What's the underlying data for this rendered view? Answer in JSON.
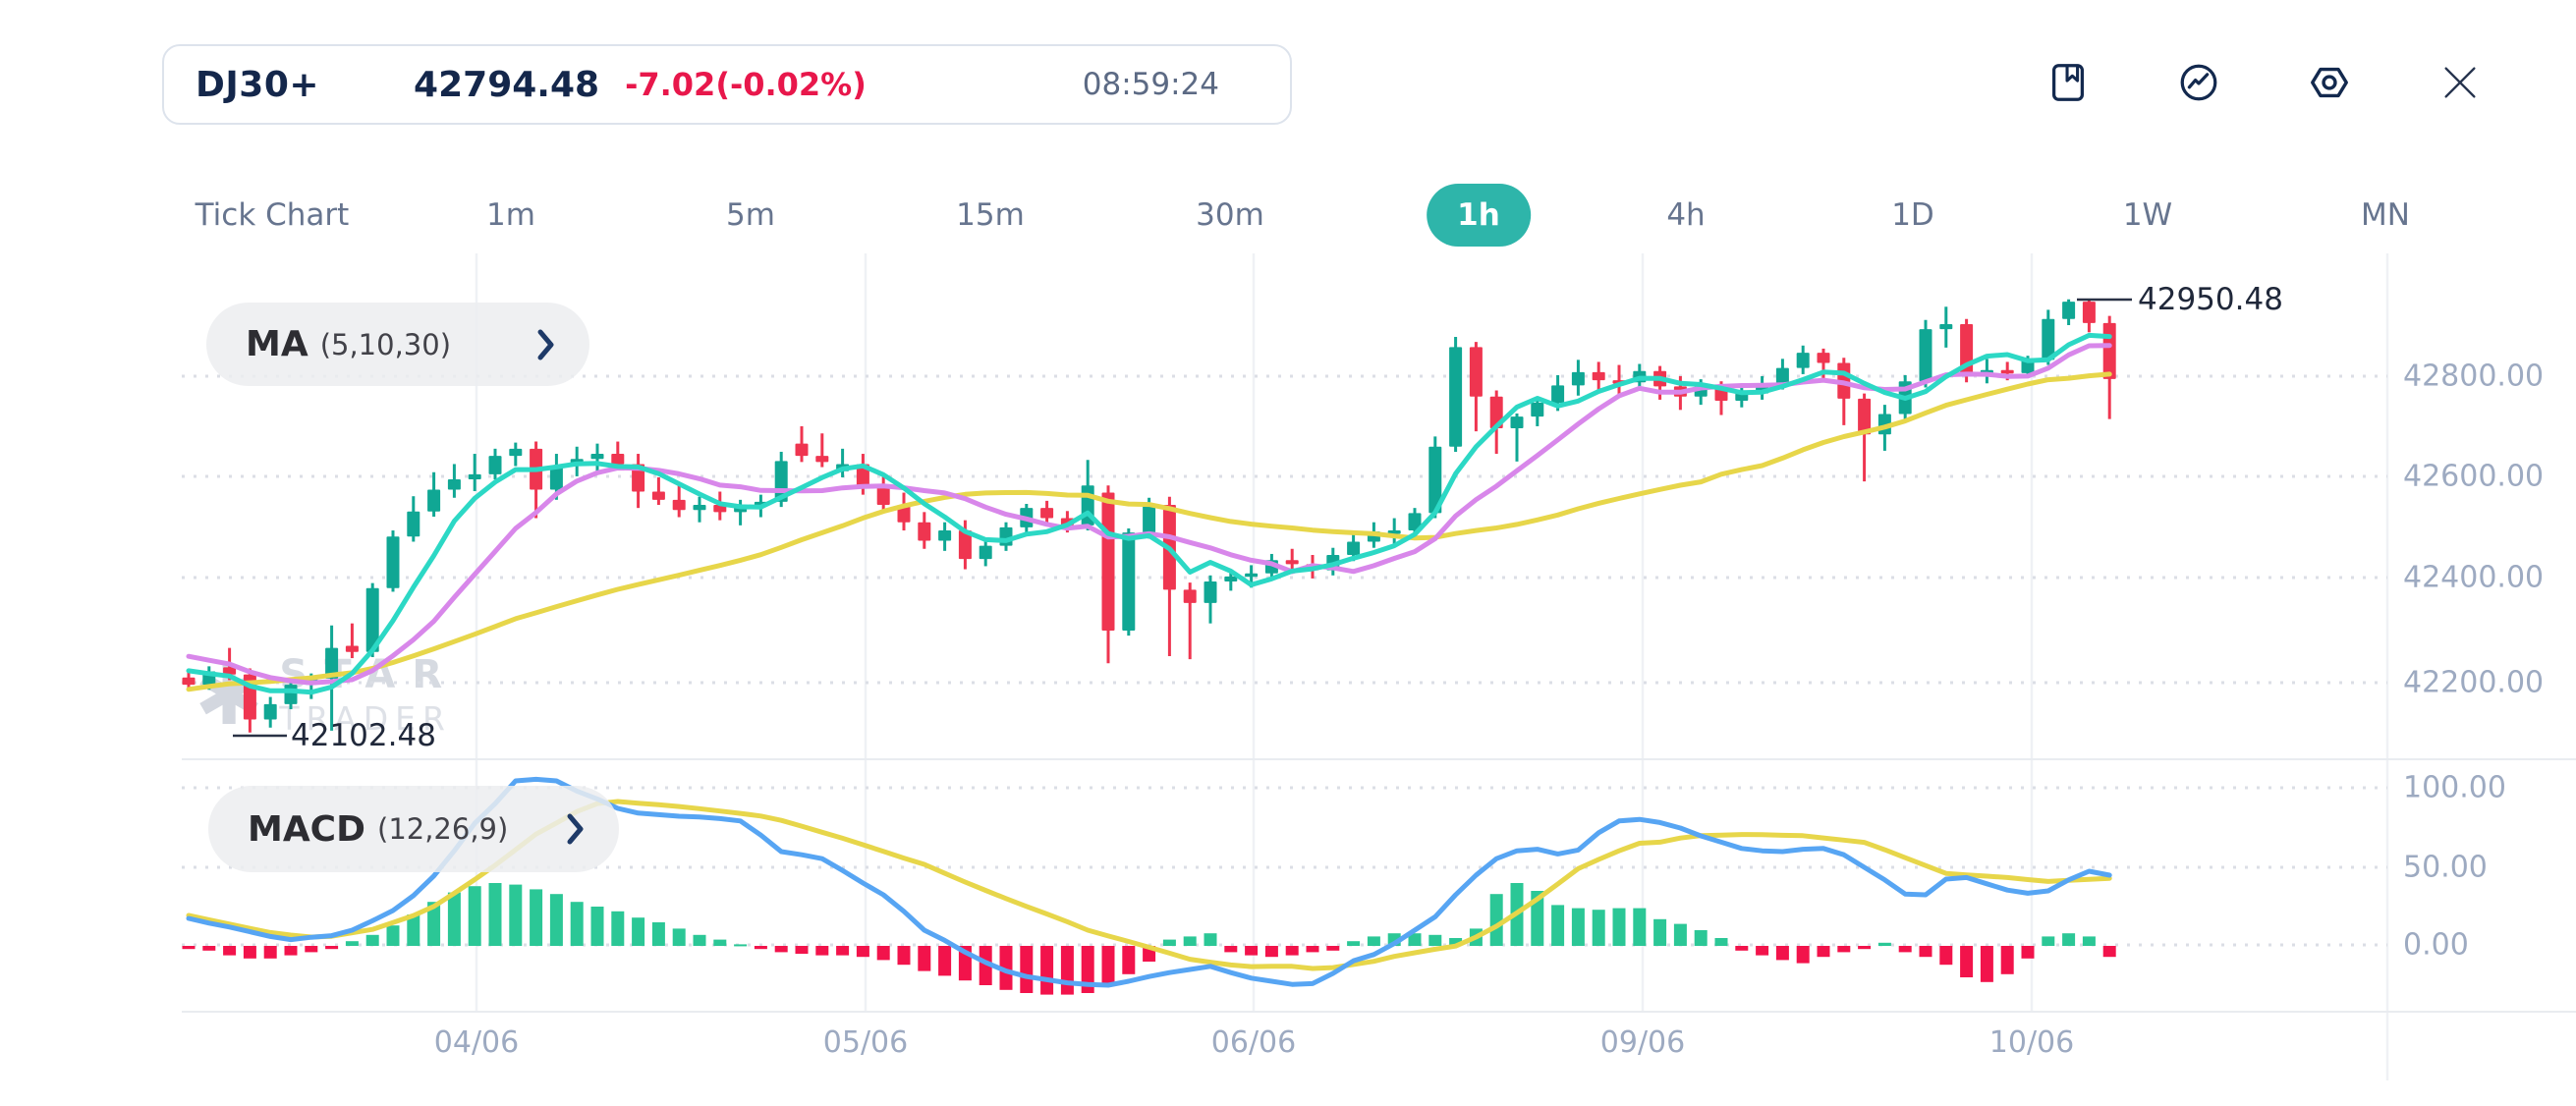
{
  "header": {
    "symbol": "DJ30+",
    "price": "42794.48",
    "change": "-7.02(-0.02%)",
    "time": "08:59:24"
  },
  "toolbar": {
    "icons": [
      "bookmark-icon",
      "chart-line-icon",
      "settings-icon",
      "close-icon"
    ]
  },
  "tabs": [
    {
      "label": "Tick Chart",
      "active": false
    },
    {
      "label": "1m",
      "active": false
    },
    {
      "label": "5m",
      "active": false
    },
    {
      "label": "15m",
      "active": false
    },
    {
      "label": "30m",
      "active": false
    },
    {
      "label": "1h",
      "active": true
    },
    {
      "label": "4h",
      "active": false
    },
    {
      "label": "1D",
      "active": false
    },
    {
      "label": "1W",
      "active": false
    },
    {
      "label": "MN",
      "active": false
    }
  ],
  "indicators": {
    "ma_label": "MA",
    "ma_params": "(5,10,30)",
    "macd_label": "MACD",
    "macd_params": "(12,26,9)"
  },
  "watermark": {
    "star": "✱",
    "line1": "STAR",
    "line2": "TRADER"
  },
  "chart_data": {
    "type": "candlestick",
    "timeframe": "1h",
    "title": "DJ30+ 1h candlestick chart with MA(5,10,30) and MACD(12,26,9)",
    "price_axis": {
      "tick_labels": [
        "42800.00",
        "42600.00",
        "42400.00",
        "42200.00"
      ],
      "tick_values": [
        42800,
        42600,
        42400,
        42200
      ]
    },
    "macd_axis": {
      "tick_labels": [
        "100.00",
        "50.00",
        "0.00"
      ],
      "tick_values": [
        100,
        50,
        0
      ]
    },
    "x_labels": [
      "04/06",
      "05/06",
      "06/06",
      "09/06",
      "10/06"
    ],
    "high_label": "42950.48",
    "low_label": "42102.48",
    "ma_periods": [
      5,
      10,
      30
    ],
    "pre_closes": [
      42040,
      42050,
      42060,
      42070,
      42080,
      42090,
      42100,
      42110,
      42120,
      42130,
      42140,
      42150,
      42160,
      42170,
      42180,
      42190,
      42200,
      42230,
      42260,
      42290,
      42310,
      42300,
      42290,
      42280,
      42270,
      42260,
      42250,
      42240,
      42225,
      42205
    ],
    "candles": [
      [
        42210,
        42225,
        42185,
        42196
      ],
      [
        42196,
        42232,
        42186,
        42222
      ],
      [
        42230,
        42268,
        42205,
        42216
      ],
      [
        42216,
        42228,
        42102.48,
        42128
      ],
      [
        42128,
        42172,
        42112,
        42158
      ],
      [
        42158,
        42205,
        42148,
        42196
      ],
      [
        42196,
        42218,
        42168,
        42208
      ],
      [
        42208,
        42312,
        42106,
        42268
      ],
      [
        42272,
        42316,
        42248,
        42260
      ],
      [
        42260,
        42395,
        42250,
        42385
      ],
      [
        42385,
        42498,
        42378,
        42486
      ],
      [
        42486,
        42565,
        42476,
        42535
      ],
      [
        42535,
        42612,
        42525,
        42578
      ],
      [
        42578,
        42628,
        42562,
        42598
      ],
      [
        42598,
        42648,
        42575,
        42608
      ],
      [
        42608,
        42658,
        42598,
        42644
      ],
      [
        42644,
        42670,
        42624,
        42658
      ],
      [
        42658,
        42672,
        42522,
        42578
      ],
      [
        42578,
        42648,
        42558,
        42624
      ],
      [
        42624,
        42662,
        42604,
        42638
      ],
      [
        42638,
        42668,
        42614,
        42648
      ],
      [
        42648,
        42672,
        42618,
        42628
      ],
      [
        42628,
        42648,
        42542,
        42574
      ],
      [
        42574,
        42602,
        42548,
        42558
      ],
      [
        42558,
        42588,
        42524,
        42538
      ],
      [
        42538,
        42564,
        42514,
        42548
      ],
      [
        42548,
        42574,
        42518,
        42534
      ],
      [
        42534,
        42558,
        42508,
        42544
      ],
      [
        42544,
        42568,
        42524,
        42554
      ],
      [
        42554,
        42652,
        42544,
        42634
      ],
      [
        42668,
        42702,
        42632,
        42644
      ],
      [
        42644,
        42688,
        42622,
        42632
      ],
      [
        42614,
        42658,
        42602,
        42628
      ],
      [
        42628,
        42648,
        42568,
        42584
      ],
      [
        42584,
        42604,
        42532,
        42548
      ],
      [
        42548,
        42572,
        42498,
        42514
      ],
      [
        42514,
        42534,
        42462,
        42478
      ],
      [
        42478,
        42514,
        42458,
        42498
      ],
      [
        42498,
        42518,
        42422,
        42442
      ],
      [
        42442,
        42482,
        42428,
        42468
      ],
      [
        42468,
        42514,
        42458,
        42504
      ],
      [
        42504,
        42550,
        42494,
        42542
      ],
      [
        42542,
        42556,
        42510,
        42522
      ],
      [
        42522,
        42536,
        42494,
        42508
      ],
      [
        42508,
        42636,
        42498,
        42586
      ],
      [
        42572,
        42586,
        42238,
        42302
      ],
      [
        42302,
        42502,
        42292,
        42494
      ],
      [
        42494,
        42562,
        42482,
        42548
      ],
      [
        42548,
        42564,
        42252,
        42382
      ],
      [
        42382,
        42396,
        42246,
        42356
      ],
      [
        42356,
        42410,
        42316,
        42398
      ],
      [
        42398,
        42420,
        42380,
        42408
      ],
      [
        42408,
        42430,
        42386,
        42414
      ],
      [
        42414,
        42452,
        42402,
        42440
      ],
      [
        42440,
        42462,
        42420,
        42432
      ],
      [
        42432,
        42450,
        42404,
        42420
      ],
      [
        42420,
        42464,
        42410,
        42450
      ],
      [
        42450,
        42492,
        42438,
        42476
      ],
      [
        42476,
        42514,
        42464,
        42496
      ],
      [
        42496,
        42522,
        42472,
        42498
      ],
      [
        42498,
        42542,
        42488,
        42532
      ],
      [
        42532,
        42682,
        42522,
        42662
      ],
      [
        42662,
        42877,
        42652,
        42857
      ],
      [
        42857,
        42867,
        42692,
        42760
      ],
      [
        42760,
        42772,
        42648,
        42698
      ],
      [
        42698,
        42727,
        42633,
        42721
      ],
      [
        42721,
        42752,
        42702,
        42748
      ],
      [
        42748,
        42802,
        42732,
        42782
      ],
      [
        42782,
        42832,
        42762,
        42808
      ],
      [
        42808,
        42828,
        42772,
        42792
      ],
      [
        42792,
        42822,
        42762,
        42788
      ],
      [
        42788,
        42824,
        42774,
        42810
      ],
      [
        42810,
        42820,
        42754,
        42780
      ],
      [
        42780,
        42800,
        42734,
        42760
      ],
      [
        42760,
        42794,
        42744,
        42780
      ],
      [
        42780,
        42790,
        42724,
        42752
      ],
      [
        42752,
        42784,
        42739,
        42766
      ],
      [
        42766,
        42800,
        42754,
        42786
      ],
      [
        42786,
        42834,
        42774,
        42816
      ],
      [
        42816,
        42860,
        42804,
        42846
      ],
      [
        42846,
        42854,
        42794,
        42826
      ],
      [
        42826,
        42836,
        42704,
        42756
      ],
      [
        42756,
        42766,
        42594,
        42686
      ],
      [
        42686,
        42744,
        42654,
        42726
      ],
      [
        42726,
        42802,
        42714,
        42790
      ],
      [
        42790,
        42910,
        42778,
        42892
      ],
      [
        42892,
        42936,
        42856,
        42902
      ],
      [
        42902,
        42912,
        42788,
        42800
      ],
      [
        42800,
        42834,
        42786,
        42812
      ],
      [
        42812,
        42828,
        42792,
        42806
      ],
      [
        42806,
        42840,
        42798,
        42832
      ],
      [
        42832,
        42930,
        42822,
        42912
      ],
      [
        42912,
        42950.48,
        42900,
        42946
      ],
      [
        42946,
        42950,
        42886,
        42904
      ],
      [
        42904,
        42918,
        42716,
        42794.48
      ]
    ],
    "macd_line": [
      17.5,
      14.5,
      12,
      9,
      6,
      4,
      5.5,
      6.5,
      10,
      16,
      22.5,
      32,
      44.5,
      60.5,
      78,
      90.5,
      105,
      106,
      105,
      98.5,
      93.5,
      87.5,
      84.5,
      83.5,
      82.5,
      82,
      81,
      79.5,
      70.5,
      60,
      58,
      55.5,
      48,
      40,
      32.5,
      22,
      10,
      3.5,
      -4,
      -10.5,
      -16,
      -19.5,
      -21.5,
      -23.5,
      -24.5,
      -25,
      -22.5,
      -19.5,
      -17,
      -15,
      -13,
      -17,
      -20.5,
      -22.5,
      -24.5,
      -24,
      -17.5,
      -9.5,
      -5.5,
      1.5,
      10,
      18.5,
      32.5,
      45,
      55.5,
      60.5,
      61.5,
      58.5,
      61,
      72,
      79.5,
      80.5,
      78.5,
      75,
      70,
      66,
      62,
      60.5,
      60,
      61.5,
      62,
      58,
      50,
      42,
      33,
      32.5,
      42.5,
      43.5,
      39.5,
      35.5,
      33.5,
      35,
      42,
      47.5,
      45
    ],
    "signal_line": [
      19.4,
      16.6,
      13.9,
      11.1,
      8.5,
      6.9,
      5.6,
      6.1,
      8.3,
      10.5,
      14.9,
      19.3,
      25.1,
      33.5,
      42.2,
      51.3,
      61.2,
      71.1,
      78.2,
      85.5,
      90.5,
      91.9,
      90.8,
      89.9,
      88.7,
      87.3,
      85.8,
      84.3,
      82.6,
      79.9,
      76.2,
      72.3,
      68.5,
      64.4,
      60.1,
      55.9,
      51.9,
      46.2,
      40.6,
      35.3,
      30.1,
      25.1,
      20.3,
      15.4,
      10,
      6.3,
      2.8,
      -0.9,
      -4.6,
      -8.5,
      -10.4,
      -12.1,
      -13.2,
      -13,
      -13,
      -14.4,
      -13.8,
      -11.8,
      -9.8,
      -6.7,
      -4.4,
      -2.1,
      -0.1,
      5.6,
      12.5,
      21,
      29.8,
      39.4,
      49.1,
      55,
      60.5,
      65.3,
      66,
      68.6,
      70.2,
      70.5,
      70.9,
      70.8,
      70.4,
      70.1,
      68.7,
      67.3,
      65.9,
      61.2,
      56.1,
      51.1,
      46.1,
      45.2,
      44.4,
      43.5,
      42.2,
      41,
      41.7,
      42.4,
      43
    ],
    "histogram": [
      -2,
      -3,
      -6,
      -8,
      -8,
      -6,
      -4,
      -2,
      3,
      7,
      13,
      20,
      28,
      34,
      38,
      40,
      39,
      36,
      33,
      28,
      25,
      22,
      18,
      15,
      11,
      7,
      4,
      1,
      -2,
      -4,
      -5,
      -6,
      -6,
      -7,
      -9,
      -12,
      -16,
      -19,
      -22,
      -25,
      -28,
      -30,
      -31,
      -31,
      -30,
      -24,
      -18,
      -10,
      4,
      6,
      8,
      -4,
      -6,
      -7,
      -6,
      -4,
      -3,
      3,
      6,
      8,
      8,
      7,
      5,
      11,
      33,
      40,
      35,
      26,
      24,
      23,
      24,
      24,
      17,
      14,
      10,
      5,
      -3,
      -6,
      -9,
      -11,
      -7,
      -4,
      -2,
      2,
      -4,
      -7,
      -12,
      -20,
      -23,
      -18,
      -8,
      6,
      8,
      6,
      -7
    ],
    "colors": {
      "up": "#10a794",
      "down": "#ef3550",
      "ma5": "#2cd8c5",
      "ma10": "#d887ea",
      "ma30": "#e7d64a",
      "macd": "#57a5f3",
      "signal": "#e7d64a",
      "hist_up": "#2bc796",
      "hist_down": "#f2134b",
      "accent": "#2eb5aa",
      "grid_dot": "#dbdee5",
      "grid_line": "#eff1f5"
    }
  }
}
